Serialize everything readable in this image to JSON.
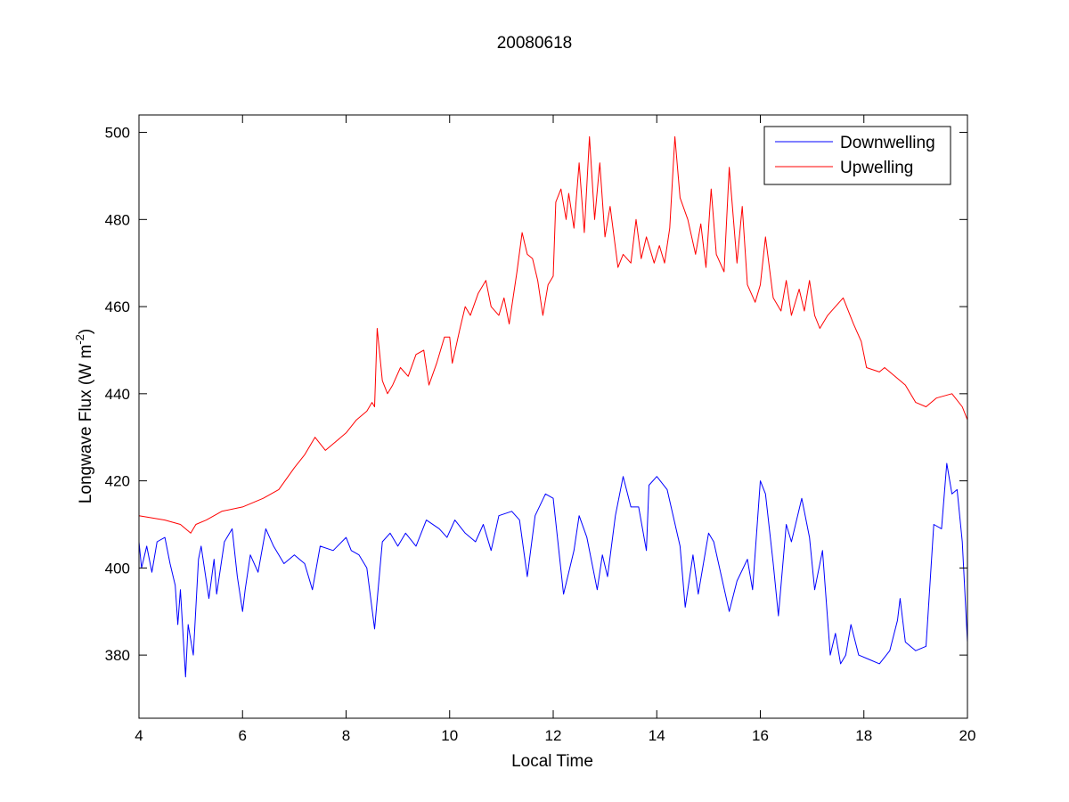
{
  "chart_data": {
    "type": "line",
    "title": "20080618",
    "xlabel": "Local Time",
    "ylabel": "Longwave Flux (W m",
    "ylabel_sup": "-2",
    "ylabel_close": ")",
    "xlim": [
      4,
      20
    ],
    "ylim": [
      365.5,
      504
    ],
    "xticks": [
      4,
      6,
      8,
      10,
      12,
      14,
      16,
      18,
      20
    ],
    "yticks": [
      380,
      400,
      420,
      440,
      460,
      480,
      500
    ],
    "grid": false,
    "legend_placement": "top-right",
    "series": [
      {
        "name": "Downwelling",
        "color": "#0000ff",
        "points": [
          [
            4.0,
            406
          ],
          [
            4.05,
            400
          ],
          [
            4.15,
            405
          ],
          [
            4.25,
            399
          ],
          [
            4.35,
            406
          ],
          [
            4.5,
            407
          ],
          [
            4.6,
            401
          ],
          [
            4.7,
            396
          ],
          [
            4.75,
            387
          ],
          [
            4.8,
            395
          ],
          [
            4.9,
            375
          ],
          [
            4.95,
            387
          ],
          [
            5.05,
            380
          ],
          [
            5.15,
            402
          ],
          [
            5.2,
            405
          ],
          [
            5.35,
            393
          ],
          [
            5.45,
            402
          ],
          [
            5.5,
            394
          ],
          [
            5.65,
            406
          ],
          [
            5.8,
            409
          ],
          [
            5.9,
            398
          ],
          [
            6.0,
            390
          ],
          [
            6.05,
            395
          ],
          [
            6.15,
            403
          ],
          [
            6.3,
            399
          ],
          [
            6.45,
            409
          ],
          [
            6.6,
            405
          ],
          [
            6.8,
            401
          ],
          [
            7.0,
            403
          ],
          [
            7.2,
            401
          ],
          [
            7.35,
            395
          ],
          [
            7.5,
            405
          ],
          [
            7.75,
            404
          ],
          [
            8.0,
            407
          ],
          [
            8.1,
            404
          ],
          [
            8.25,
            403
          ],
          [
            8.4,
            400
          ],
          [
            8.55,
            386
          ],
          [
            8.7,
            406
          ],
          [
            8.85,
            408
          ],
          [
            9.0,
            405
          ],
          [
            9.15,
            408
          ],
          [
            9.35,
            405
          ],
          [
            9.55,
            411
          ],
          [
            9.8,
            409
          ],
          [
            9.95,
            407
          ],
          [
            10.1,
            411
          ],
          [
            10.3,
            408
          ],
          [
            10.5,
            406
          ],
          [
            10.65,
            410
          ],
          [
            10.8,
            404
          ],
          [
            10.95,
            412
          ],
          [
            11.2,
            413
          ],
          [
            11.35,
            411
          ],
          [
            11.5,
            398
          ],
          [
            11.65,
            412
          ],
          [
            11.85,
            417
          ],
          [
            12.0,
            416
          ],
          [
            12.1,
            405
          ],
          [
            12.2,
            394
          ],
          [
            12.4,
            404
          ],
          [
            12.5,
            412
          ],
          [
            12.65,
            407
          ],
          [
            12.85,
            395
          ],
          [
            12.95,
            403
          ],
          [
            13.05,
            398
          ],
          [
            13.2,
            412
          ],
          [
            13.35,
            421
          ],
          [
            13.5,
            414
          ],
          [
            13.65,
            414
          ],
          [
            13.8,
            404
          ],
          [
            13.85,
            419
          ],
          [
            14.0,
            421
          ],
          [
            14.2,
            418
          ],
          [
            14.45,
            405
          ],
          [
            14.55,
            391
          ],
          [
            14.7,
            403
          ],
          [
            14.8,
            394
          ],
          [
            15.0,
            408
          ],
          [
            15.1,
            406
          ],
          [
            15.25,
            398
          ],
          [
            15.4,
            390
          ],
          [
            15.55,
            397
          ],
          [
            15.75,
            402
          ],
          [
            15.85,
            395
          ],
          [
            16.0,
            420
          ],
          [
            16.1,
            417
          ],
          [
            16.25,
            401
          ],
          [
            16.35,
            389
          ],
          [
            16.5,
            410
          ],
          [
            16.6,
            406
          ],
          [
            16.8,
            416
          ],
          [
            16.95,
            407
          ],
          [
            17.05,
            395
          ],
          [
            17.2,
            404
          ],
          [
            17.35,
            380
          ],
          [
            17.45,
            385
          ],
          [
            17.55,
            378
          ],
          [
            17.65,
            380
          ],
          [
            17.75,
            387
          ],
          [
            17.9,
            380
          ],
          [
            18.1,
            379
          ],
          [
            18.3,
            378
          ],
          [
            18.5,
            381
          ],
          [
            18.65,
            388
          ],
          [
            18.7,
            393
          ],
          [
            18.8,
            383
          ],
          [
            19.0,
            381
          ],
          [
            19.2,
            382
          ],
          [
            19.35,
            410
          ],
          [
            19.5,
            409
          ],
          [
            19.6,
            424
          ],
          [
            19.7,
            417
          ],
          [
            19.8,
            418
          ],
          [
            19.9,
            406
          ],
          [
            20.0,
            383
          ]
        ]
      },
      {
        "name": "Upwelling",
        "color": "#ff0000",
        "points": [
          [
            4.0,
            412
          ],
          [
            4.5,
            411
          ],
          [
            4.8,
            410
          ],
          [
            5.0,
            408
          ],
          [
            5.1,
            410
          ],
          [
            5.3,
            411
          ],
          [
            5.6,
            413
          ],
          [
            6.0,
            414
          ],
          [
            6.4,
            416
          ],
          [
            6.7,
            418
          ],
          [
            7.0,
            423
          ],
          [
            7.2,
            426
          ],
          [
            7.4,
            430
          ],
          [
            7.6,
            427
          ],
          [
            7.8,
            429
          ],
          [
            8.0,
            431
          ],
          [
            8.2,
            434
          ],
          [
            8.4,
            436
          ],
          [
            8.5,
            438
          ],
          [
            8.55,
            437
          ],
          [
            8.6,
            455
          ],
          [
            8.7,
            443
          ],
          [
            8.8,
            440
          ],
          [
            8.9,
            442
          ],
          [
            9.05,
            446
          ],
          [
            9.2,
            444
          ],
          [
            9.35,
            449
          ],
          [
            9.5,
            450
          ],
          [
            9.6,
            442
          ],
          [
            9.75,
            447
          ],
          [
            9.9,
            453
          ],
          [
            10.0,
            453
          ],
          [
            10.05,
            447
          ],
          [
            10.2,
            455
          ],
          [
            10.3,
            460
          ],
          [
            10.4,
            458
          ],
          [
            10.55,
            463
          ],
          [
            10.7,
            466
          ],
          [
            10.8,
            460
          ],
          [
            10.95,
            458
          ],
          [
            11.05,
            462
          ],
          [
            11.15,
            456
          ],
          [
            11.3,
            468
          ],
          [
            11.4,
            477
          ],
          [
            11.5,
            472
          ],
          [
            11.6,
            471
          ],
          [
            11.7,
            466
          ],
          [
            11.8,
            458
          ],
          [
            11.9,
            465
          ],
          [
            12.0,
            467
          ],
          [
            12.05,
            484
          ],
          [
            12.15,
            487
          ],
          [
            12.25,
            480
          ],
          [
            12.3,
            486
          ],
          [
            12.4,
            478
          ],
          [
            12.5,
            493
          ],
          [
            12.6,
            477
          ],
          [
            12.7,
            499
          ],
          [
            12.8,
            480
          ],
          [
            12.9,
            493
          ],
          [
            13.0,
            476
          ],
          [
            13.1,
            483
          ],
          [
            13.25,
            469
          ],
          [
            13.35,
            472
          ],
          [
            13.5,
            470
          ],
          [
            13.6,
            480
          ],
          [
            13.7,
            471
          ],
          [
            13.8,
            476
          ],
          [
            13.95,
            470
          ],
          [
            14.05,
            474
          ],
          [
            14.15,
            470
          ],
          [
            14.25,
            478
          ],
          [
            14.35,
            499
          ],
          [
            14.45,
            485
          ],
          [
            14.6,
            480
          ],
          [
            14.75,
            472
          ],
          [
            14.85,
            479
          ],
          [
            14.95,
            469
          ],
          [
            15.05,
            487
          ],
          [
            15.15,
            472
          ],
          [
            15.3,
            468
          ],
          [
            15.4,
            492
          ],
          [
            15.55,
            470
          ],
          [
            15.65,
            483
          ],
          [
            15.75,
            465
          ],
          [
            15.9,
            461
          ],
          [
            16.0,
            465
          ],
          [
            16.1,
            476
          ],
          [
            16.25,
            462
          ],
          [
            16.4,
            459
          ],
          [
            16.5,
            466
          ],
          [
            16.6,
            458
          ],
          [
            16.75,
            464
          ],
          [
            16.85,
            459
          ],
          [
            16.95,
            466
          ],
          [
            17.05,
            458
          ],
          [
            17.15,
            455
          ],
          [
            17.3,
            458
          ],
          [
            17.45,
            460
          ],
          [
            17.6,
            462
          ],
          [
            17.8,
            456
          ],
          [
            17.95,
            452
          ],
          [
            18.05,
            446
          ],
          [
            18.3,
            445
          ],
          [
            18.4,
            446
          ],
          [
            18.6,
            444
          ],
          [
            18.8,
            442
          ],
          [
            19.0,
            438
          ],
          [
            19.2,
            437
          ],
          [
            19.4,
            439
          ],
          [
            19.7,
            440
          ],
          [
            19.9,
            437
          ],
          [
            20.0,
            434
          ]
        ]
      }
    ]
  }
}
